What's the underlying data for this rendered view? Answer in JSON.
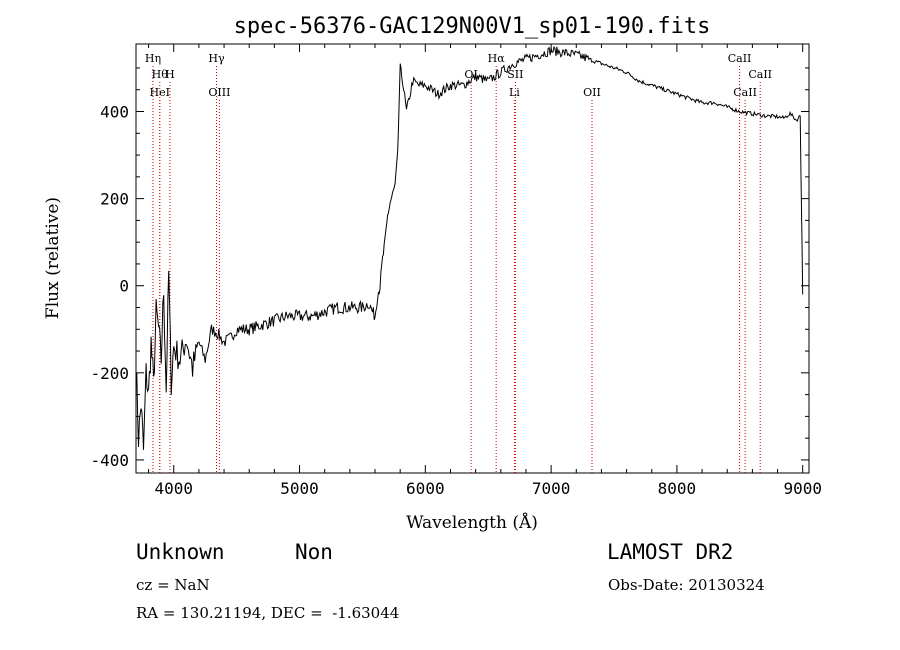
{
  "chart_data": {
    "type": "line",
    "title": "spec-56376-GAC129N00V1_sp01-190.fits",
    "xlabel": "Wavelength (Å)",
    "ylabel": "Flux (relative)",
    "xlim": [
      3700,
      9050
    ],
    "ylim": [
      -430,
      555
    ],
    "xticks": [
      "4000",
      "5000",
      "6000",
      "7000",
      "8000",
      "9000"
    ],
    "yticks": [
      "-400",
      "-200",
      "0",
      "200",
      "400"
    ],
    "grid": false,
    "series": [
      {
        "x": [
          3700,
          3720,
          3740,
          3760,
          3780,
          3800,
          3820,
          3840,
          3860,
          3880,
          3900,
          3920,
          3940,
          3960,
          3980,
          4000,
          4050,
          4100,
          4150,
          4200,
          4250,
          4300,
          4350,
          4400,
          4450,
          4500,
          4600,
          4700,
          4800,
          4900,
          5000,
          5100,
          5200,
          5300,
          5400,
          5500,
          5550,
          5580,
          5600,
          5620,
          5640,
          5660,
          5680,
          5700,
          5720,
          5740,
          5760,
          5780,
          5800,
          5820,
          5850,
          5900,
          5950,
          6000,
          6050,
          6100,
          6200,
          6300,
          6400,
          6500,
          6550,
          6600,
          6650,
          6700,
          6800,
          6900,
          7000,
          7100,
          7200,
          7300,
          7400,
          7500,
          7600,
          7700,
          7800,
          7900,
          8000,
          8100,
          8200,
          8300,
          8400,
          8500,
          8600,
          8700,
          8800,
          8850,
          8900,
          8950,
          8980,
          9000
        ],
        "y": [
          -170,
          -350,
          -270,
          -380,
          -200,
          -250,
          -130,
          -230,
          -60,
          -100,
          -170,
          -10,
          -240,
          30,
          -220,
          -140,
          -170,
          -120,
          -190,
          -130,
          -170,
          -100,
          -110,
          -130,
          -120,
          -100,
          -100,
          -90,
          -80,
          -70,
          -70,
          -70,
          -60,
          -50,
          -50,
          -50,
          -40,
          -60,
          -70,
          -20,
          0,
          60,
          100,
          160,
          190,
          210,
          230,
          300,
          500,
          470,
          400,
          470,
          460,
          460,
          450,
          440,
          460,
          460,
          480,
          470,
          480,
          490,
          500,
          510,
          520,
          530,
          540,
          535,
          530,
          520,
          510,
          500,
          490,
          470,
          460,
          450,
          440,
          430,
          420,
          420,
          410,
          400,
          395,
          390,
          388,
          385,
          395,
          380,
          390,
          -20
        ]
      }
    ],
    "annotations": {
      "lines": [
        {
          "label": "Hη",
          "x": 3835,
          "row": 0
        },
        {
          "label": "Hθ",
          "x": 3889,
          "row": 1
        },
        {
          "label": "H",
          "x": 3970,
          "row": 1
        },
        {
          "label": "HeI",
          "x": 3889,
          "row": 2
        },
        {
          "label": "Hγ",
          "x": 4340,
          "row": 0
        },
        {
          "label": "OIII",
          "x": 4363,
          "row": 2
        },
        {
          "label": "Hα",
          "x": 6563,
          "row": 0
        },
        {
          "label": "OI",
          "x": 6364,
          "row": 1
        },
        {
          "label": "SII",
          "x": 6716,
          "row": 1
        },
        {
          "label": "Li",
          "x": 6708,
          "row": 2
        },
        {
          "label": "OII",
          "x": 7325,
          "row": 2
        },
        {
          "label": "CaII",
          "x": 8498,
          "row": 0
        },
        {
          "label": "CaII",
          "x": 8662,
          "row": 1
        },
        {
          "label": "CaII",
          "x": 8542,
          "row": 2
        }
      ]
    }
  },
  "info": {
    "object_type": "Unknown",
    "subtype": "Non",
    "survey": "LAMOST DR2",
    "cz": "cz = NaN",
    "obs_date": "Obs-Date: 20130324",
    "radec": "RA = 130.21194, DEC =  -1.63044"
  }
}
